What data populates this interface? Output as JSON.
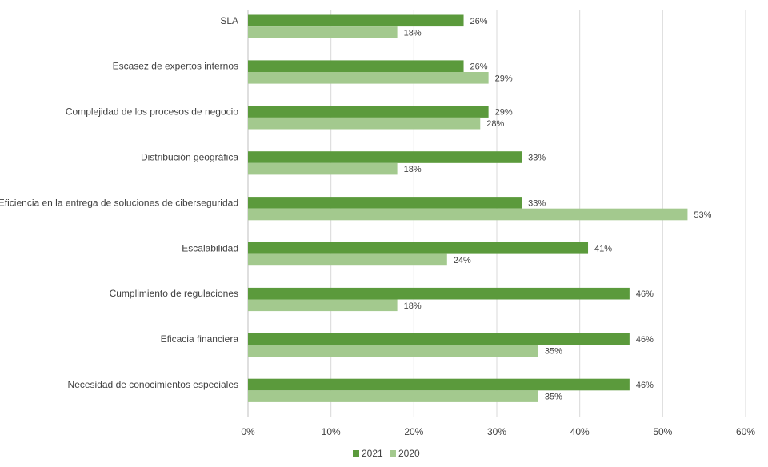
{
  "chart_data": {
    "type": "bar",
    "orientation": "horizontal",
    "categories": [
      "SLA",
      "Escasez de expertos internos",
      "Complejidad de los procesos de negocio",
      "Distribución geográfica",
      "Eficiencia en la entrega de soluciones de ciberseguridad",
      "Escalabilidad",
      "Cumplimiento de regulaciones",
      "Eficacia financiera",
      "Necesidad de conocimientos especiales"
    ],
    "series": [
      {
        "name": "2021",
        "color": "#5b9a3c",
        "values": [
          26,
          26,
          29,
          33,
          33,
          41,
          46,
          46,
          46
        ]
      },
      {
        "name": "2020",
        "color": "#a3c98e",
        "values": [
          18,
          29,
          28,
          18,
          53,
          24,
          18,
          35,
          35
        ]
      }
    ],
    "xlim": [
      0,
      60
    ],
    "x_ticks": [
      0,
      10,
      20,
      30,
      40,
      50,
      60
    ],
    "tick_format": "percent",
    "grid": true,
    "legend_position": "bottom",
    "title": "",
    "xlabel": "",
    "ylabel": ""
  }
}
